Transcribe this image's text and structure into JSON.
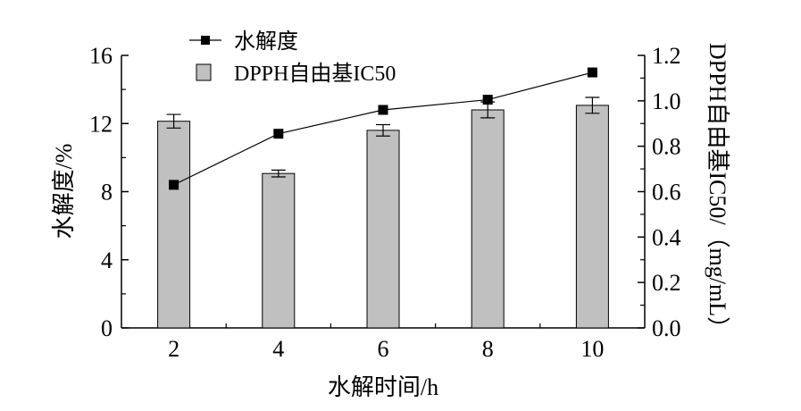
{
  "chart_data": {
    "type": "bar+line",
    "x": [
      2,
      4,
      6,
      8,
      10
    ],
    "xlabel": "水解时间/h",
    "ylabel_left": "水解度/%",
    "ylabel_right": "DPPH自由基IC50/（mg/mL）",
    "ylim_left": [
      0,
      16
    ],
    "ylim_right": [
      0.0,
      1.2
    ],
    "yticks_left": [
      "0",
      "4",
      "8",
      "12",
      "16"
    ],
    "yticks_right": [
      "0.0",
      "0.2",
      "0.4",
      "0.6",
      "0.8",
      "1.0",
      "1.2"
    ],
    "xticks": [
      "2",
      "4",
      "6",
      "8",
      "10"
    ],
    "series": [
      {
        "name": "水解度",
        "kind": "line",
        "axis": "left",
        "values": [
          8.4,
          11.4,
          12.8,
          13.4,
          15.0
        ]
      },
      {
        "name": "DPPH自由基IC50",
        "kind": "bar",
        "axis": "right",
        "values": [
          0.91,
          0.68,
          0.87,
          0.96,
          0.98
        ],
        "errors": [
          0.03,
          0.015,
          0.025,
          0.035,
          0.035
        ]
      }
    ],
    "legend_position": "top-left",
    "colors": {
      "bar_fill": "#c0c0c0",
      "bar_stroke": "#000000",
      "line": "#000000",
      "marker": "#000000"
    }
  }
}
